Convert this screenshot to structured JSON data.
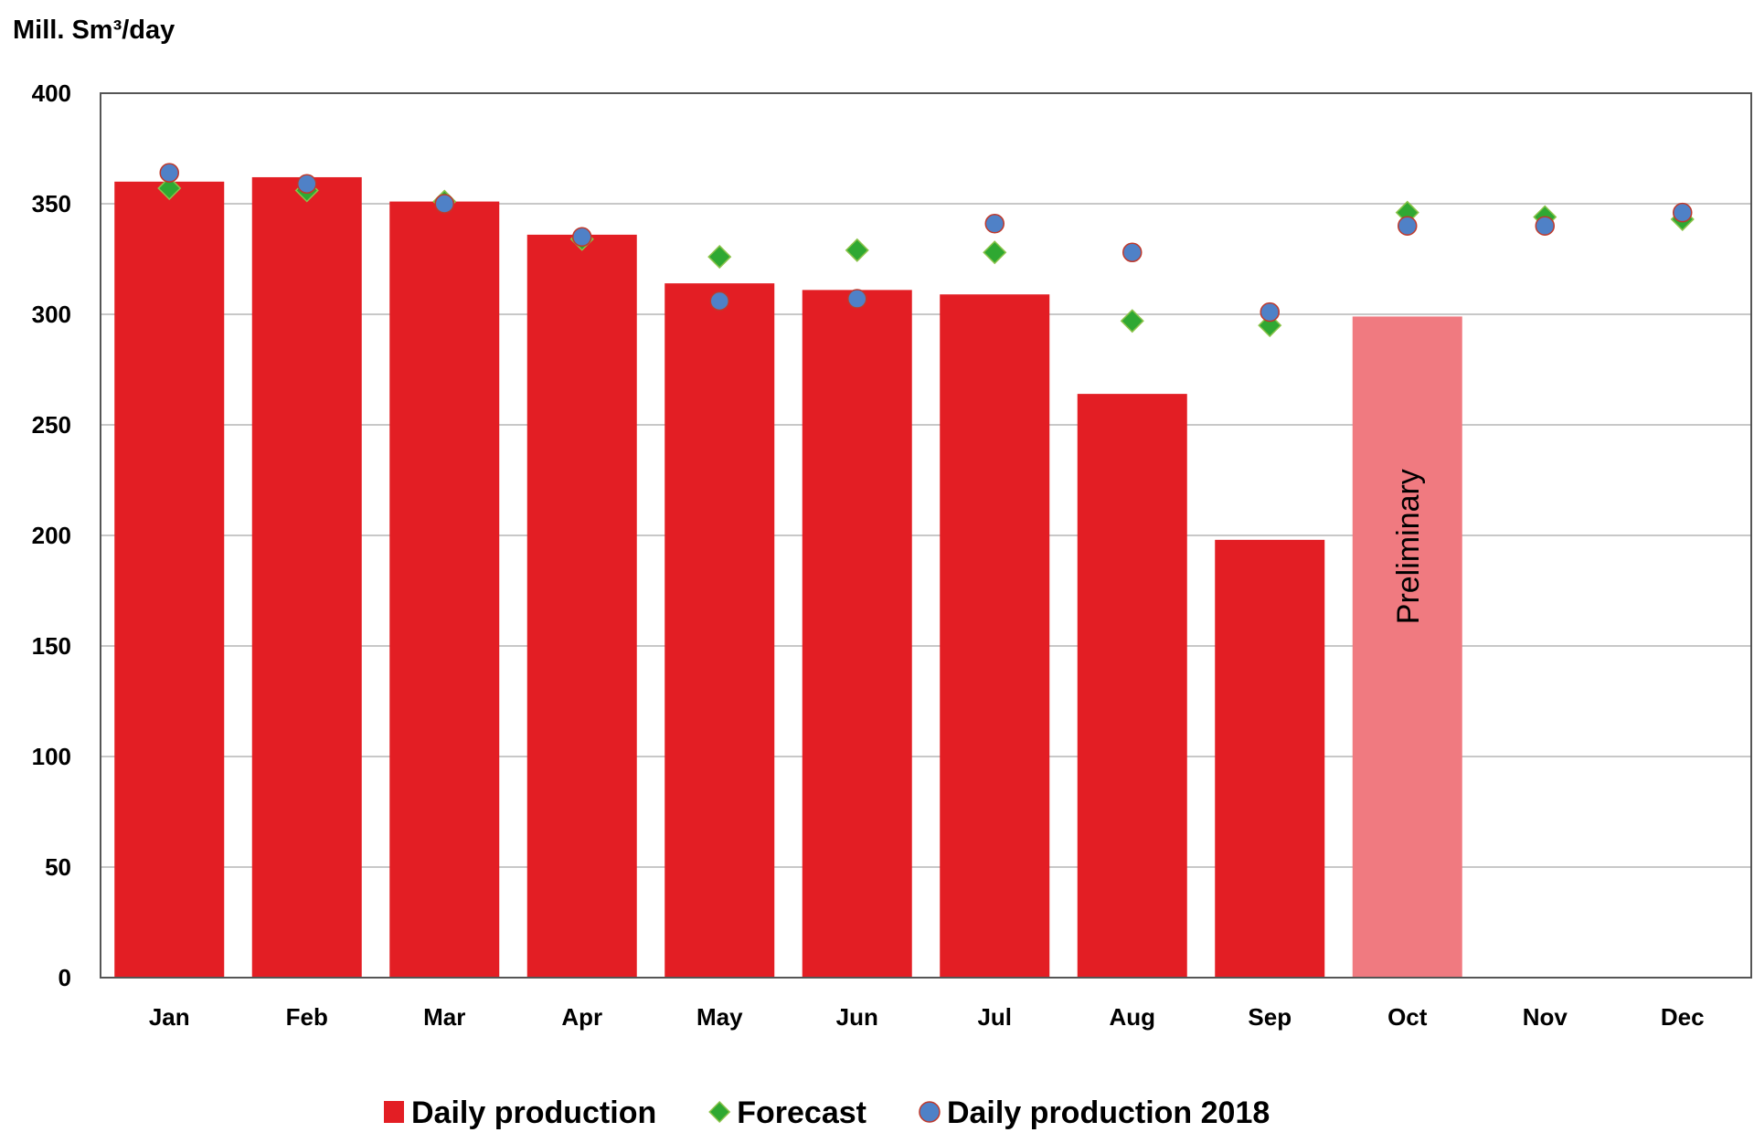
{
  "chart_data": {
    "type": "bar",
    "ylabel": "Mill. Sm³/day",
    "ylim": [
      0,
      400
    ],
    "yticks": [
      0,
      50,
      100,
      150,
      200,
      250,
      300,
      350,
      400
    ],
    "grid": true,
    "legend_position": "bottom",
    "categories": [
      "Jan",
      "Feb",
      "Mar",
      "Apr",
      "May",
      "Jun",
      "Jul",
      "Aug",
      "Sep",
      "Oct",
      "Nov",
      "Dec"
    ],
    "series": [
      {
        "name": "Daily production",
        "kind": "bar",
        "color": "#e31e24",
        "preliminary_color": "#f07a80",
        "values": [
          360,
          362,
          351,
          336,
          314,
          311,
          309,
          264,
          198,
          299,
          null,
          null
        ],
        "preliminary": [
          false,
          false,
          false,
          false,
          false,
          false,
          false,
          false,
          false,
          true,
          false,
          false
        ]
      },
      {
        "name": "Forecast",
        "kind": "marker-diamond",
        "color": "#2fa832",
        "values": [
          357,
          356,
          351,
          334,
          326,
          329,
          328,
          297,
          295,
          346,
          344,
          343
        ]
      },
      {
        "name": "Daily production 2018",
        "kind": "marker-circle",
        "color": "#4f81c7",
        "values": [
          364,
          359,
          350,
          335,
          306,
          307,
          341,
          328,
          301,
          340,
          340,
          346
        ]
      }
    ],
    "annotations": [
      {
        "text": "Preliminary",
        "category": "Oct"
      }
    ]
  }
}
